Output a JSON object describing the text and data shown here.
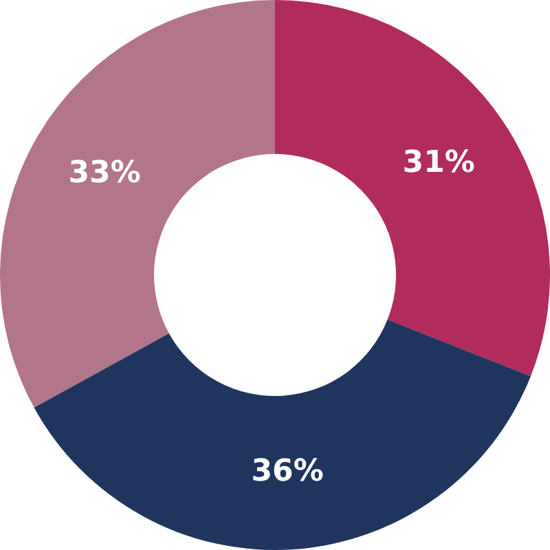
{
  "chart_data": {
    "type": "donut",
    "categories": [
      null,
      null,
      null
    ],
    "values": [
      31,
      36,
      33
    ],
    "colors": [
      "#b12b5c",
      "#1f355e",
      "#b27589"
    ],
    "value_labels": [
      "31%",
      "36%",
      "33%"
    ],
    "legend": false
  }
}
